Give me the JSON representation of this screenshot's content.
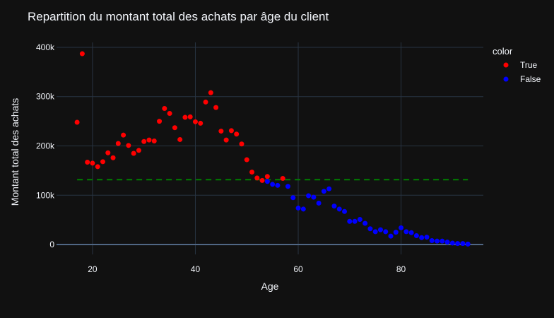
{
  "chart_data": {
    "type": "scatter",
    "title": "Repartition du montant total des achats par âge du client",
    "xlabel": "Age",
    "ylabel": "Montant total des achats",
    "xlim": [
      13,
      96
    ],
    "ylim": [
      -20000,
      410000
    ],
    "x_ticks": [
      20,
      40,
      60,
      80
    ],
    "y_ticks": [
      0,
      100000,
      200000,
      300000,
      400000
    ],
    "y_tick_labels": [
      "0",
      "100k",
      "200k",
      "300k",
      "400k"
    ],
    "grid": true,
    "legend": {
      "title": "color",
      "placement": "top-right"
    },
    "series": [
      {
        "name": "True",
        "color": "#ff0000",
        "x": [
          17,
          18,
          19,
          20,
          21,
          22,
          23,
          24,
          25,
          26,
          27,
          28,
          29,
          30,
          31,
          32,
          33,
          34,
          35,
          36,
          37,
          38,
          39,
          40,
          41,
          42,
          43,
          44,
          45,
          46,
          47,
          48,
          49,
          50,
          51,
          52,
          53,
          54,
          57
        ],
        "y": [
          248000,
          387000,
          167000,
          165000,
          158000,
          168000,
          186000,
          176000,
          205000,
          222000,
          201000,
          185000,
          191000,
          209000,
          212000,
          210000,
          250000,
          276000,
          266000,
          237000,
          213000,
          258000,
          259000,
          249000,
          246000,
          289000,
          308000,
          278000,
          230000,
          212000,
          231000,
          224000,
          204000,
          172000,
          147000,
          135000,
          130000,
          138000,
          134000
        ]
      },
      {
        "name": "False",
        "color": "#0000ff",
        "x": [
          54,
          55,
          56,
          58,
          59,
          60,
          61,
          62,
          63,
          64,
          65,
          66,
          67,
          68,
          69,
          70,
          71,
          72,
          73,
          74,
          75,
          76,
          77,
          78,
          79,
          80,
          81,
          82,
          83,
          84,
          85,
          86,
          87,
          88,
          89,
          90,
          91,
          92,
          93
        ],
        "y": [
          128000,
          122000,
          120000,
          118000,
          95000,
          74000,
          72000,
          99000,
          96000,
          84000,
          108000,
          113000,
          78000,
          72000,
          67000,
          47000,
          47000,
          51000,
          43000,
          32000,
          26000,
          30000,
          26000,
          17000,
          25000,
          34000,
          26000,
          24000,
          18000,
          14000,
          15000,
          8000,
          7000,
          7000,
          5000,
          3000,
          2000,
          2000,
          1000
        ]
      }
    ],
    "reference_line": {
      "y": 131500,
      "x_range": [
        17,
        93
      ],
      "color": "#008000",
      "style": "dashed"
    }
  }
}
